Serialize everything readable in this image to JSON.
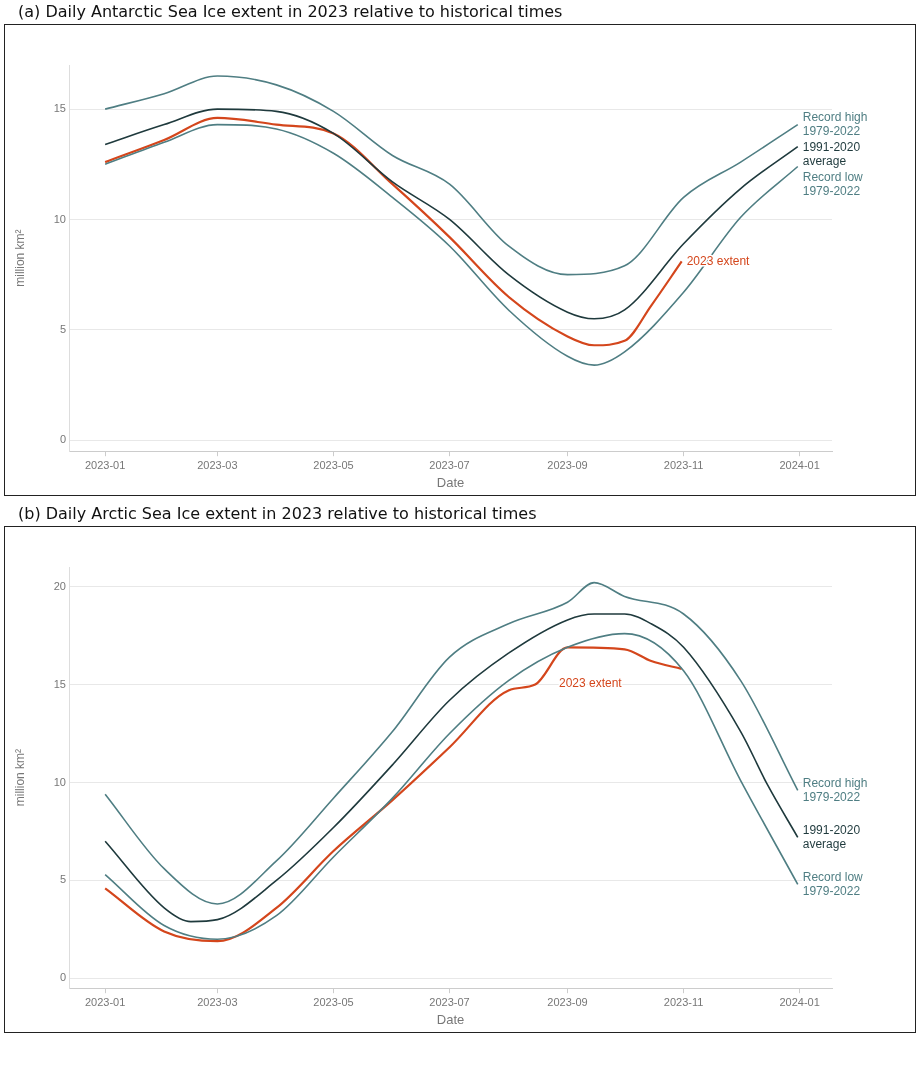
{
  "chart_data": [
    {
      "type": "line",
      "title": "(a)  Daily Antarctic Sea Ice extent in 2023 relative to historical times",
      "xlabel": "Date",
      "ylabel": "million km²",
      "xlim": [
        "2022-12-13",
        "2024-01-18"
      ],
      "xticks": [
        "2023-01",
        "2023-03",
        "2023-05",
        "2023-07",
        "2023-09",
        "2023-11",
        "2024-01"
      ],
      "ylim": [
        -0.5,
        17
      ],
      "yticks": [
        0,
        5,
        10,
        15
      ],
      "grid": "y",
      "legend": false,
      "marker": "none",
      "series": [
        {
          "name": "Record high 1979-2022",
          "color": "#4f7e83",
          "x": [
            "2023-01-01",
            "2023-02-01",
            "2023-03-01",
            "2023-04-01",
            "2023-05-01",
            "2023-06-01",
            "2023-07-01",
            "2023-08-01",
            "2023-09-01",
            "2023-10-01",
            "2023-11-01",
            "2023-12-01",
            "2023-12-31"
          ],
          "values": [
            15.0,
            15.7,
            16.5,
            16.1,
            14.9,
            12.9,
            11.6,
            8.8,
            7.5,
            7.9,
            11.0,
            12.6,
            14.3
          ]
        },
        {
          "name": "1991-2020 average",
          "color": "#1f3a3d",
          "x": [
            "2023-01-01",
            "2023-02-01",
            "2023-03-01",
            "2023-04-01",
            "2023-05-01",
            "2023-06-01",
            "2023-07-01",
            "2023-08-01",
            "2023-09-01",
            "2023-09-15",
            "2023-10-01",
            "2023-11-01",
            "2023-12-01",
            "2023-12-31"
          ],
          "values": [
            13.4,
            14.3,
            15.0,
            14.9,
            13.9,
            11.7,
            10.0,
            7.5,
            5.8,
            5.5,
            5.9,
            8.9,
            11.4,
            13.3
          ]
        },
        {
          "name": "Record low 1979-2022",
          "color": "#4f7e83",
          "x": [
            "2023-01-01",
            "2023-02-01",
            "2023-03-01",
            "2023-04-01",
            "2023-05-01",
            "2023-06-01",
            "2023-07-01",
            "2023-08-01",
            "2023-09-01",
            "2023-09-15",
            "2023-10-01",
            "2023-11-01",
            "2023-12-01",
            "2023-12-31"
          ],
          "values": [
            12.5,
            13.5,
            14.3,
            14.1,
            13.0,
            11.0,
            8.8,
            5.9,
            3.8,
            3.4,
            4.0,
            6.7,
            10.1,
            12.4
          ]
        },
        {
          "name": "2023 extent",
          "color": "#d4461c",
          "x": [
            "2023-01-01",
            "2023-02-01",
            "2023-03-01",
            "2023-04-01",
            "2023-05-01",
            "2023-06-01",
            "2023-07-01",
            "2023-08-01",
            "2023-09-01",
            "2023-09-15",
            "2023-10-01",
            "2023-10-15",
            "2023-10-31"
          ],
          "values": [
            12.6,
            13.6,
            14.6,
            14.3,
            13.9,
            11.6,
            9.2,
            6.5,
            4.7,
            4.3,
            4.5,
            6.1,
            8.1
          ]
        }
      ]
    },
    {
      "type": "line",
      "title": "(b)  Daily Arctic Sea Ice extent in 2023 relative to historical times",
      "xlabel": "Date",
      "ylabel": "million km²",
      "xlim": [
        "2022-12-13",
        "2024-01-18"
      ],
      "xticks": [
        "2023-01",
        "2023-03",
        "2023-05",
        "2023-07",
        "2023-09",
        "2023-11",
        "2024-01"
      ],
      "ylim": [
        -0.5,
        21
      ],
      "yticks": [
        0,
        5,
        10,
        15,
        20
      ],
      "grid": "y",
      "legend": false,
      "marker": "none",
      "series": [
        {
          "name": "Record high 1979-2022",
          "color": "#4f7e83",
          "x": [
            "2023-01-01",
            "2023-02-01",
            "2023-03-01",
            "2023-04-01",
            "2023-05-01",
            "2023-06-01",
            "2023-07-01",
            "2023-08-01",
            "2023-09-01",
            "2023-09-15",
            "2023-10-01",
            "2023-11-01",
            "2023-12-01",
            "2023-12-31"
          ],
          "values": [
            9.4,
            5.6,
            3.8,
            6.0,
            9.2,
            12.6,
            16.4,
            18.1,
            19.2,
            20.2,
            19.5,
            18.6,
            15.2,
            9.6
          ]
        },
        {
          "name": "1991-2020 average",
          "color": "#1f3a3d",
          "x": [
            "2023-01-01",
            "2023-02-01",
            "2023-02-15",
            "2023-03-01",
            "2023-04-01",
            "2023-05-01",
            "2023-06-01",
            "2023-07-01",
            "2023-08-01",
            "2023-09-01",
            "2023-09-15",
            "2023-10-01",
            "2023-10-15",
            "2023-11-01",
            "2023-12-01",
            "2023-12-15",
            "2023-12-31"
          ],
          "values": [
            7.0,
            3.6,
            2.9,
            3.0,
            5.0,
            7.7,
            10.9,
            14.2,
            16.6,
            18.3,
            18.6,
            18.6,
            18.1,
            16.9,
            12.6,
            9.9,
            7.2
          ]
        },
        {
          "name": "Record low 1979-2022",
          "color": "#4f7e83",
          "x": [
            "2023-01-01",
            "2023-02-01",
            "2023-03-01",
            "2023-04-01",
            "2023-05-01",
            "2023-06-01",
            "2023-07-01",
            "2023-08-01",
            "2023-09-01",
            "2023-10-01",
            "2023-11-01",
            "2023-12-01",
            "2023-12-31"
          ],
          "values": [
            5.3,
            2.7,
            2.0,
            3.2,
            6.2,
            9.2,
            12.5,
            15.2,
            16.9,
            17.6,
            15.7,
            10.1,
            4.8
          ]
        },
        {
          "name": "2023 extent",
          "color": "#d4461c",
          "x": [
            "2023-01-01",
            "2023-02-01",
            "2023-03-01",
            "2023-04-01",
            "2023-05-01",
            "2023-06-01",
            "2023-07-01",
            "2023-08-01",
            "2023-08-15",
            "2023-09-01",
            "2023-10-01",
            "2023-10-15",
            "2023-10-31"
          ],
          "values": [
            4.6,
            2.4,
            1.9,
            3.6,
            6.5,
            9.1,
            11.8,
            14.7,
            15.0,
            16.9,
            16.8,
            16.2,
            15.8
          ]
        }
      ]
    }
  ]
}
